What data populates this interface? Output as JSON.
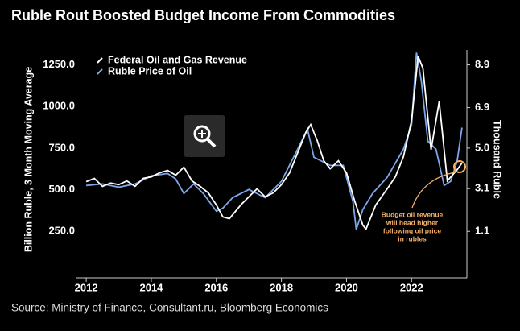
{
  "chart_data": {
    "type": "line",
    "title": "Ruble Rout Boosted Budget Income From Commodities",
    "y_label": "Billion Ruble, 3 Month Moving Average",
    "y2_label": "Thousand Ruble",
    "source": "Source: Ministry of Finance, Consultant.ru, Bloomberg Economics",
    "annotation": [
      "Budget oil revenue",
      "will head higher",
      "following oil price",
      "in rubles"
    ],
    "xlim": [
      2011.7,
      2023.7
    ],
    "xticks": [
      2012,
      2014,
      2016,
      2018,
      2020,
      2022
    ],
    "ylim": [
      -30,
      1340
    ],
    "yticks": [
      {
        "value": 250,
        "label": "250.0"
      },
      {
        "value": 500,
        "label": "500.0"
      },
      {
        "value": 750,
        "label": "750.0"
      },
      {
        "value": 1000,
        "label": "1000.0"
      },
      {
        "value": 1250,
        "label": "1250.0"
      }
    ],
    "y2lim": [
      -1.08,
      9.6
    ],
    "y2ticks": [
      1.1,
      3.1,
      {
        "value": 5,
        "label": "5.0"
      },
      6.9,
      8.9
    ],
    "legend": "top-left",
    "series": [
      {
        "name": "Federal Oil and Gas Revenue",
        "color": "#ffffff",
        "x": [
          2012.0,
          2012.25,
          2012.5,
          2012.75,
          2013.0,
          2013.25,
          2013.5,
          2013.75,
          2014.0,
          2014.25,
          2014.5,
          2014.75,
          2015.0,
          2015.25,
          2015.5,
          2015.75,
          2016.0,
          2016.2,
          2016.4,
          2016.75,
          2017.0,
          2017.25,
          2017.5,
          2017.75,
          2018.0,
          2018.25,
          2018.5,
          2018.75,
          2018.9,
          2019.1,
          2019.3,
          2019.5,
          2019.75,
          2020.0,
          2020.25,
          2020.5,
          2020.6,
          2020.9,
          2021.25,
          2021.5,
          2021.75,
          2022.0,
          2022.2,
          2022.35,
          2022.6,
          2022.85,
          2023.1,
          2023.4,
          2023.55
        ],
        "values": [
          548,
          568,
          520,
          540,
          530,
          553,
          520,
          568,
          577,
          601,
          616,
          587,
          635,
          553,
          520,
          481,
          408,
          336,
          326,
          408,
          457,
          505,
          457,
          481,
          530,
          601,
          722,
          843,
          891,
          795,
          674,
          626,
          674,
          601,
          432,
          287,
          263,
          408,
          505,
          577,
          698,
          915,
          1302,
          1229,
          740,
          1030,
          553,
          620,
          660
        ]
      },
      {
        "name": "Ruble Price of Oil",
        "color": "#7da7e8",
        "axis": "y2",
        "x": [
          2012.0,
          2012.5,
          2013.0,
          2013.5,
          2014.0,
          2014.5,
          2014.75,
          2015.0,
          2015.3,
          2015.6,
          2016.0,
          2016.2,
          2016.5,
          2017.0,
          2017.5,
          2018.0,
          2018.5,
          2018.8,
          2019.0,
          2019.5,
          2019.9,
          2020.2,
          2020.3,
          2020.5,
          2020.8,
          2021.25,
          2021.75,
          2022.0,
          2022.15,
          2022.3,
          2022.5,
          2022.75,
          2023.0,
          2023.2,
          2023.4,
          2023.55
        ],
        "values": [
          3.25,
          3.32,
          3.17,
          3.32,
          3.7,
          3.81,
          3.55,
          2.87,
          3.32,
          2.87,
          2.04,
          2.19,
          2.68,
          3.06,
          2.68,
          3.44,
          4.95,
          5.89,
          4.57,
          4.19,
          4.19,
          2.49,
          1.18,
          2.12,
          2.87,
          3.63,
          4.95,
          6.08,
          9.47,
          8.15,
          5.32,
          4.95,
          3.25,
          3.44,
          4.38,
          5.96
        ]
      }
    ]
  }
}
